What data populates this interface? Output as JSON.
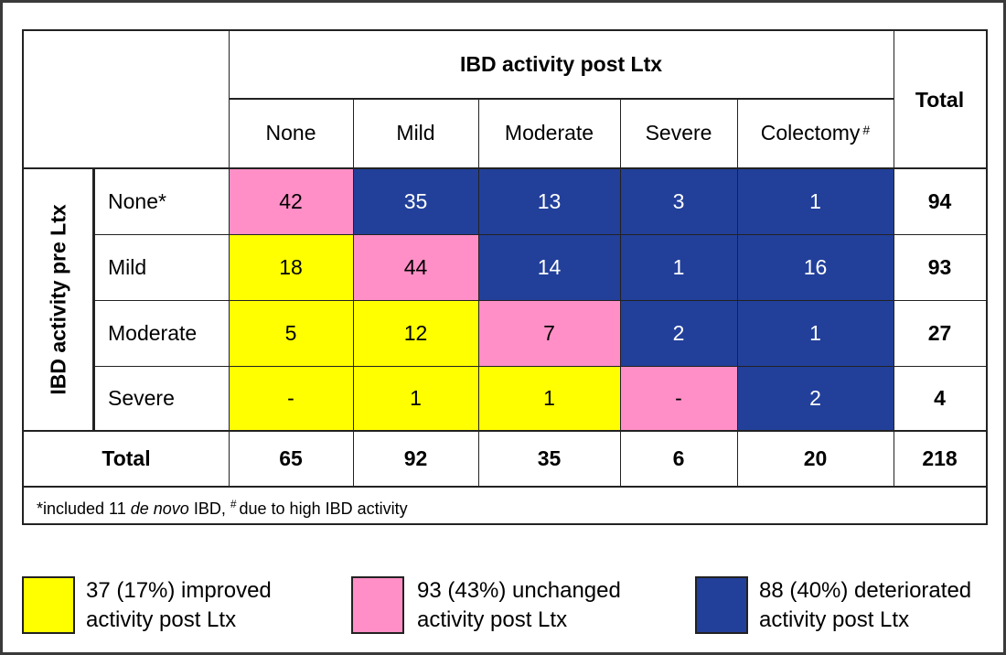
{
  "header": {
    "post_label": "IBD activity post Ltx",
    "pre_label": "IBD activity pre Ltx",
    "total_label": "Total"
  },
  "columns": [
    "None",
    "Mild",
    "Moderate",
    "Severe",
    "Colectomy"
  ],
  "colectomy_mark": "#",
  "rows": [
    {
      "label": "None*",
      "cells": [
        "42",
        "35",
        "13",
        "3",
        "1"
      ],
      "total": "94"
    },
    {
      "label": "Mild",
      "cells": [
        "18",
        "44",
        "14",
        "1",
        "16"
      ],
      "total": "93"
    },
    {
      "label": "Moderate",
      "cells": [
        "5",
        "12",
        "7",
        "2",
        "1"
      ],
      "total": "27"
    },
    {
      "label": "Severe",
      "cells": [
        "-",
        "1",
        "1",
        "-",
        "2"
      ],
      "total": "4"
    }
  ],
  "totals_row": {
    "label": "Total",
    "values": [
      "65",
      "92",
      "35",
      "6",
      "20"
    ],
    "grand": "218"
  },
  "footnote": {
    "part1": "*included 11 ",
    "italic": "de novo",
    "part2": " IBD, ",
    "mark": "#",
    "part3": "due to high IBD activity"
  },
  "legend": [
    {
      "line1": "37 (17%) improved",
      "line2": "activity post Ltx",
      "color": "#ffff00"
    },
    {
      "line1": "93 (43%) unchanged",
      "line2": "activity post Ltx",
      "color": "#ff8fc6"
    },
    {
      "line1": "88 (40%) deteriorated",
      "line2": "activity post Ltx",
      "color": "#22409a"
    }
  ],
  "colors": {
    "improved": "#ffff00",
    "unchanged": "#ff8fc6",
    "deteriorated": "#22409a"
  }
}
